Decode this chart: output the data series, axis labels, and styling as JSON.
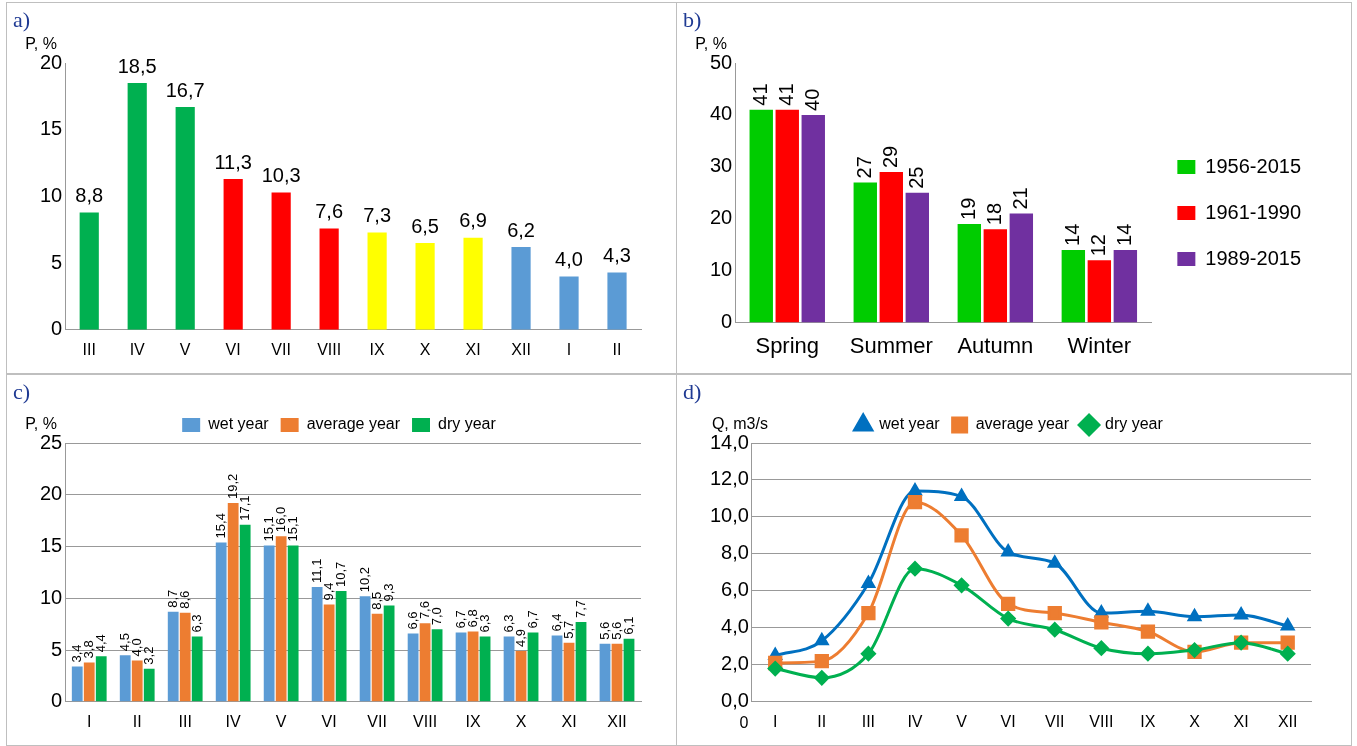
{
  "chart_data": [
    {
      "type": "bar",
      "title": "a)",
      "ylabel": "P, %",
      "categories": [
        "III",
        "IV",
        "V",
        "VI",
        "VII",
        "VIII",
        "IX",
        "X",
        "XI",
        "XII",
        "I",
        "II"
      ],
      "values": [
        8.8,
        18.5,
        16.7,
        11.3,
        10.3,
        7.6,
        7.3,
        6.5,
        6.9,
        6.2,
        4.0,
        4.3
      ],
      "colors": [
        "#00b050",
        "#00b050",
        "#00b050",
        "#ff0000",
        "#ff0000",
        "#ff0000",
        "#ffff00",
        "#ffff00",
        "#ffff00",
        "#5b9bd5",
        "#5b9bd5",
        "#5b9bd5"
      ],
      "value_labels": [
        "8,8",
        "18,5",
        "16,7",
        "11,3",
        "10,3",
        "7,6",
        "7,3",
        "6,5",
        "6,9",
        "6,2",
        "4,0",
        "4,3"
      ],
      "ylim": [
        0,
        20
      ],
      "yticks": [
        0,
        5,
        10,
        15,
        20
      ],
      "grid": false,
      "legend": false
    },
    {
      "type": "bar",
      "title": "b)",
      "ylabel": "P, %",
      "categories": [
        "Spring",
        "Summer",
        "Autumn",
        "Winter"
      ],
      "series": [
        {
          "name": "1956-2015",
          "color": "#00cc00",
          "values": [
            41,
            27,
            19,
            14
          ]
        },
        {
          "name": "1961-1990",
          "color": "#ff0000",
          "values": [
            41,
            29,
            18,
            12
          ]
        },
        {
          "name": "1989-2015",
          "color": "#7030a0",
          "values": [
            40,
            25,
            21,
            14
          ]
        }
      ],
      "data_labels": true,
      "ylim": [
        0,
        50
      ],
      "yticks": [
        0,
        10,
        20,
        30,
        40,
        50
      ],
      "grid": false,
      "legend": "right"
    },
    {
      "type": "bar",
      "title": "c)",
      "ylabel": "P, %",
      "categories": [
        "I",
        "II",
        "III",
        "IV",
        "V",
        "VI",
        "VII",
        "VIII",
        "IX",
        "X",
        "XI",
        "XII"
      ],
      "series": [
        {
          "name": "wet year",
          "color": "#5b9bd5",
          "values": [
            3.4,
            4.5,
            8.7,
            15.4,
            15.1,
            11.1,
            10.2,
            6.6,
            6.7,
            6.3,
            6.4,
            5.6
          ],
          "value_labels": [
            "3,4",
            "4,5",
            "8,7",
            "15,4",
            "15,1",
            "11,1",
            "10,2",
            "6,6",
            "6,7",
            "6,3",
            "6,4",
            "5,6"
          ]
        },
        {
          "name": "average year",
          "color": "#ed7d31",
          "values": [
            3.8,
            4.0,
            8.6,
            19.2,
            16.0,
            9.4,
            8.5,
            7.6,
            6.8,
            4.9,
            5.7,
            5.6
          ],
          "value_labels": [
            "3,8",
            "4,0",
            "8,6",
            "19,2",
            "16,0",
            "9,4",
            "8,5",
            "7,6",
            "6,8",
            "4,9",
            "5,7",
            "5,6"
          ]
        },
        {
          "name": "dry year",
          "color": "#00b050",
          "values": [
            4.4,
            3.2,
            6.3,
            17.1,
            15.1,
            10.7,
            9.3,
            7.0,
            6.3,
            6.7,
            7.7,
            6.1
          ],
          "value_labels": [
            "4,4",
            "3,2",
            "6,3",
            "17,1",
            "15,1",
            "10,7",
            "9,3",
            "7,0",
            "6,3",
            "6,7",
            "7,7",
            "6,1"
          ]
        }
      ],
      "ylim": [
        0,
        25
      ],
      "yticks": [
        0,
        5,
        10,
        15,
        20,
        25
      ],
      "grid": "y",
      "legend": "top"
    },
    {
      "type": "line",
      "title": "d)",
      "ylabel": "Q, m3/s",
      "categories": [
        "I",
        "II",
        "III",
        "IV",
        "V",
        "VI",
        "VII",
        "VIII",
        "IX",
        "X",
        "XI",
        "XII"
      ],
      "series": [
        {
          "name": "wet year",
          "color": "#0070c0",
          "marker": "triangle",
          "values": [
            2.5,
            3.3,
            6.4,
            11.4,
            11.1,
            8.1,
            7.5,
            4.8,
            4.9,
            4.6,
            4.7,
            4.1
          ]
        },
        {
          "name": "average year",
          "color": "#ed7d31",
          "marker": "square",
          "values": [
            2.1,
            2.2,
            4.8,
            10.8,
            9.0,
            5.3,
            4.8,
            4.3,
            3.8,
            2.7,
            3.2,
            3.2
          ]
        },
        {
          "name": "dry year",
          "color": "#00b050",
          "marker": "diamond",
          "values": [
            1.8,
            1.3,
            2.6,
            7.2,
            6.3,
            4.5,
            3.9,
            2.9,
            2.6,
            2.8,
            3.2,
            2.6
          ]
        }
      ],
      "ylim": [
        0,
        14
      ],
      "yticks": [
        {
          "value": 0,
          "label": "0,0"
        },
        {
          "value": 2,
          "label": "2,0"
        },
        {
          "value": 4,
          "label": "4,0"
        },
        {
          "value": 6,
          "label": "6,0"
        },
        {
          "value": 8,
          "label": "8,0"
        },
        {
          "value": 10,
          "label": "10,0"
        },
        {
          "value": 12,
          "label": "12,0"
        },
        {
          "value": 14,
          "label": "14,0"
        }
      ],
      "grid": "y",
      "legend": "top",
      "annotations": [
        "0"
      ]
    }
  ]
}
